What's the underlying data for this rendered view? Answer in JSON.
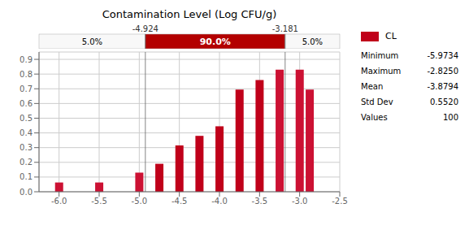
{
  "chart_data": {
    "type": "bar",
    "title": "Contamination Level (Log CFU/g)",
    "x": [
      -6.0,
      -5.75,
      -5.5,
      -5.25,
      -5.0,
      -4.75,
      -4.5,
      -4.25,
      -4.0,
      -3.75,
      -3.5,
      -3.25,
      -3.0,
      -2.875
    ],
    "series": [
      {
        "name": "CL",
        "color": "#c0001a",
        "values": [
          0.063,
          0.0,
          0.063,
          0.0,
          0.13,
          0.19,
          0.315,
          0.38,
          0.445,
          0.695,
          0.76,
          0.83,
          0.83,
          0.695
        ],
        "colors": [
          "#cc1133",
          "#cc1133",
          "#cc1133",
          "#cc1133",
          "#cc1133",
          "#c0001a",
          "#c0001a",
          "#c0001a",
          "#c0001a",
          "#c0001a",
          "#c0001a",
          "#cc1133",
          "#cc1133",
          "#cc1133"
        ]
      }
    ],
    "xlim": [
      -6.25,
      -2.5
    ],
    "ylim": [
      0,
      0.95
    ],
    "xticks": [
      {
        "value": -6,
        "label": "-6.0"
      },
      -5.5,
      {
        "value": -5,
        "label": "-5.0"
      },
      -4.5,
      {
        "value": -4,
        "label": "-4.0"
      },
      -3.5,
      {
        "value": -3,
        "label": "-3.0"
      },
      -2.5
    ],
    "yticks": [
      {
        "value": 0,
        "label": "0.0"
      },
      0.1,
      0.2,
      0.3,
      0.4,
      0.5,
      0.6,
      0.7,
      0.8,
      0.9
    ],
    "grid": true,
    "legend": "right",
    "thresholds": [
      -4.924,
      -3.181
    ],
    "regions": [
      {
        "value": 5.0,
        "label": "5.0%"
      },
      {
        "value": 90.0,
        "label": "90.0%",
        "color": "#b30000"
      },
      {
        "value": 5.0,
        "label": "5.0%"
      }
    ],
    "stats": [
      {
        "name": "Minimum",
        "value": -5.9734,
        "label": "-5.9734"
      },
      {
        "name": "Maximum",
        "value": -2.825,
        "label": "-2.8250"
      },
      {
        "name": "Mean",
        "value": -3.8794,
        "label": "-3.8794"
      },
      {
        "name": "Std Dev",
        "value": 0.552,
        "label": "0.5520"
      },
      {
        "name": "Values",
        "value": 100,
        "label": "100"
      }
    ]
  }
}
